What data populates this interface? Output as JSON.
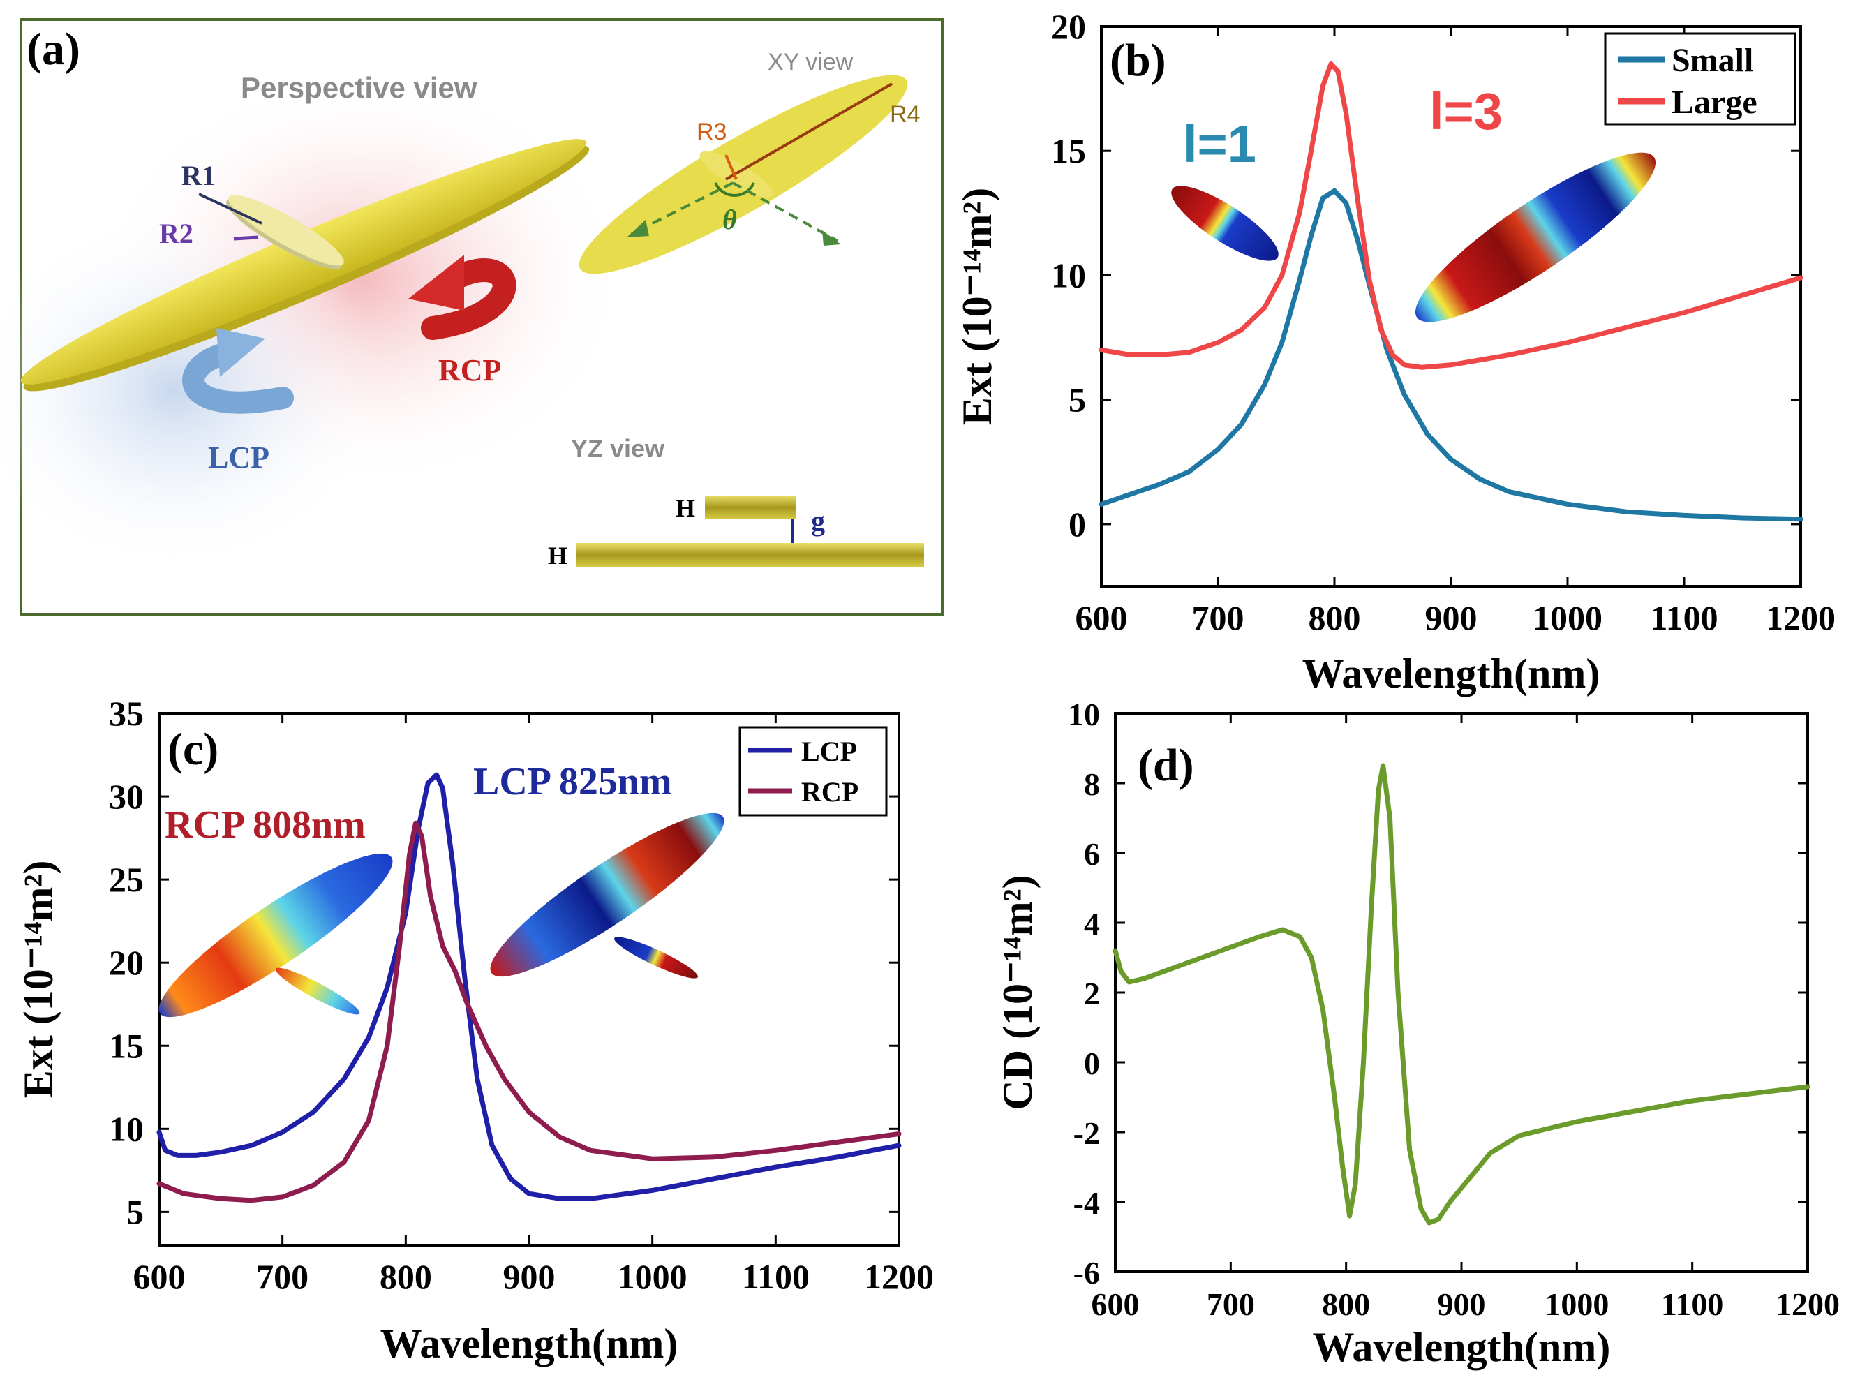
{
  "colors": {
    "small": "#1f77a4",
    "large": "#ef4648",
    "lcp": "#1f1fa8",
    "rcp": "#8e1c4e",
    "cd": "#6b9b2a",
    "panel_border": "#4c6b2e",
    "gold": "#e4d33a"
  },
  "panel_a": {
    "label": "(a)",
    "perspective_title": "Perspective view",
    "xy_title": "XY view",
    "yz_title": "YZ view",
    "r1": "R1",
    "r2": "R2",
    "r3": "R3",
    "r4": "R4",
    "theta": "θ",
    "rcp": "RCP",
    "lcp": "LCP",
    "h_top": "H",
    "h_bottom": "H",
    "g": "g"
  },
  "chart_data": [
    {
      "panel": "(b)",
      "type": "line",
      "xlabel": "Wavelength(nm)",
      "ylabel": "Ext (10⁻¹⁴m²)",
      "xlim": [
        600,
        1200
      ],
      "ylim": [
        -2.5,
        20
      ],
      "xticks": [
        600,
        700,
        800,
        900,
        1000,
        1100,
        1200
      ],
      "yticks": [
        0,
        5,
        10,
        15,
        20
      ],
      "legend": "top-right",
      "annotations": [
        "l=1",
        "l=3"
      ],
      "series": [
        {
          "name": "Small",
          "color": "#1f77a4",
          "x": [
            600,
            625,
            650,
            675,
            700,
            720,
            740,
            755,
            770,
            780,
            790,
            800,
            810,
            820,
            830,
            845,
            860,
            880,
            900,
            925,
            950,
            1000,
            1050,
            1100,
            1150,
            1200
          ],
          "y": [
            0.8,
            1.2,
            1.6,
            2.1,
            3.0,
            4.0,
            5.6,
            7.3,
            9.8,
            11.6,
            13.1,
            13.4,
            12.9,
            11.4,
            9.6,
            7.0,
            5.2,
            3.6,
            2.6,
            1.8,
            1.3,
            0.8,
            0.5,
            0.35,
            0.25,
            0.2
          ]
        },
        {
          "name": "Large",
          "color": "#ef4648",
          "x": [
            600,
            625,
            650,
            675,
            700,
            720,
            740,
            755,
            770,
            780,
            790,
            797,
            803,
            810,
            820,
            830,
            840,
            850,
            860,
            875,
            900,
            950,
            1000,
            1050,
            1100,
            1150,
            1200
          ],
          "y": [
            7.0,
            6.8,
            6.8,
            6.9,
            7.3,
            7.8,
            8.7,
            10.0,
            12.5,
            15.0,
            17.6,
            18.5,
            18.2,
            16.5,
            13.0,
            9.8,
            7.8,
            6.8,
            6.4,
            6.3,
            6.4,
            6.8,
            7.3,
            7.9,
            8.5,
            9.2,
            9.9
          ]
        }
      ]
    },
    {
      "panel": "(c)",
      "type": "line",
      "xlabel": "Wavelength(nm)",
      "ylabel": "Ext (10⁻¹⁴m²)",
      "xlim": [
        600,
        1200
      ],
      "ylim": [
        3,
        35
      ],
      "xticks": [
        600,
        700,
        800,
        900,
        1000,
        1100,
        1200
      ],
      "yticks": [
        5,
        10,
        15,
        20,
        25,
        30,
        35
      ],
      "legend": "top-right",
      "annotations": [
        "RCP 808nm",
        "LCP 825nm"
      ],
      "series": [
        {
          "name": "LCP",
          "color": "#1f1fa8",
          "x": [
            600,
            605,
            615,
            630,
            650,
            675,
            700,
            725,
            750,
            770,
            785,
            800,
            810,
            818,
            825,
            830,
            838,
            848,
            858,
            870,
            885,
            900,
            925,
            950,
            1000,
            1050,
            1100,
            1150,
            1200
          ],
          "y": [
            9.8,
            8.7,
            8.4,
            8.4,
            8.6,
            9.0,
            9.8,
            11.0,
            13.0,
            15.5,
            18.5,
            23.0,
            28.0,
            30.8,
            31.3,
            30.5,
            26.0,
            19.0,
            13.0,
            9.0,
            7.0,
            6.1,
            5.8,
            5.8,
            6.3,
            7.0,
            7.7,
            8.3,
            9.0
          ]
        },
        {
          "name": "RCP",
          "color": "#8e1c4e",
          "x": [
            600,
            620,
            650,
            675,
            700,
            725,
            750,
            770,
            785,
            795,
            803,
            808,
            813,
            820,
            830,
            840,
            850,
            865,
            880,
            900,
            925,
            950,
            1000,
            1050,
            1100,
            1150,
            1200
          ],
          "y": [
            6.7,
            6.1,
            5.8,
            5.7,
            5.9,
            6.6,
            8.0,
            10.5,
            15.0,
            21.0,
            26.5,
            28.4,
            27.6,
            24.0,
            21.0,
            19.5,
            17.5,
            15.0,
            13.0,
            11.0,
            9.5,
            8.7,
            8.2,
            8.3,
            8.7,
            9.2,
            9.7
          ]
        }
      ]
    },
    {
      "panel": "(d)",
      "type": "line",
      "xlabel": "Wavelength(nm)",
      "ylabel": "CD (10⁻¹⁴m²)",
      "xlim": [
        600,
        1200
      ],
      "ylim": [
        -6,
        10
      ],
      "xticks": [
        600,
        700,
        800,
        900,
        1000,
        1100,
        1200
      ],
      "yticks": [
        -6,
        -4,
        -2,
        0,
        2,
        4,
        6,
        8,
        10
      ],
      "series": [
        {
          "name": "CD",
          "color": "#6b9b2a",
          "x": [
            600,
            605,
            612,
            625,
            650,
            675,
            700,
            725,
            745,
            760,
            770,
            780,
            790,
            797,
            803,
            808,
            815,
            822,
            828,
            832,
            838,
            845,
            855,
            865,
            872,
            880,
            890,
            900,
            925,
            950,
            1000,
            1050,
            1100,
            1150,
            1200
          ],
          "y": [
            3.2,
            2.6,
            2.3,
            2.4,
            2.7,
            3.0,
            3.3,
            3.6,
            3.8,
            3.6,
            3.0,
            1.5,
            -1.0,
            -3.0,
            -4.4,
            -3.5,
            0.0,
            4.5,
            7.8,
            8.5,
            7.0,
            2.0,
            -2.5,
            -4.2,
            -4.6,
            -4.5,
            -4.0,
            -3.6,
            -2.6,
            -2.1,
            -1.7,
            -1.4,
            -1.1,
            -0.9,
            -0.7
          ]
        }
      ]
    }
  ]
}
